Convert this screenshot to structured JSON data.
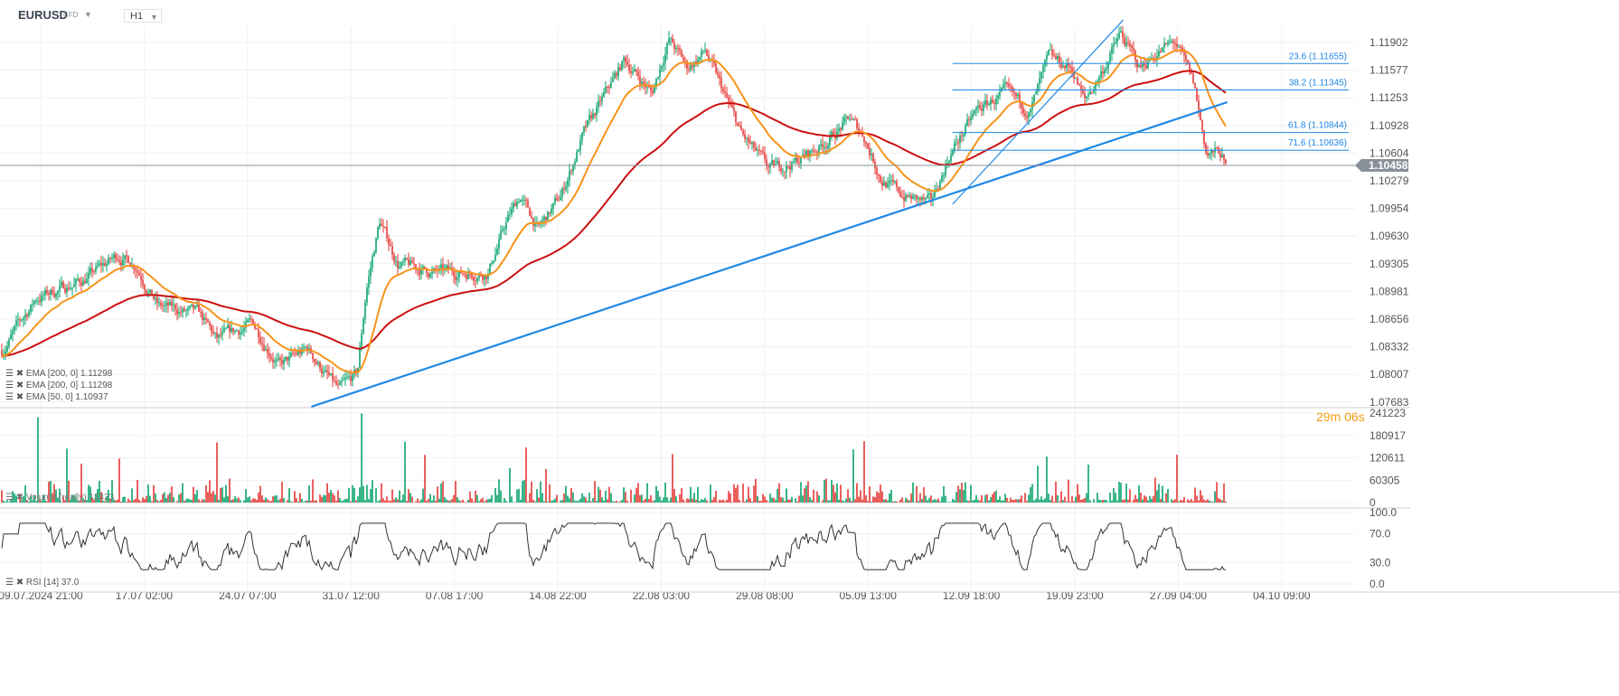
{
  "header": {
    "symbol": "EURUSD",
    "instrument_type": "CFD",
    "timeframe": "H1",
    "dropdown_icon": "caret-down-icon"
  },
  "colors": {
    "up": "#0aa36b",
    "down": "#e53935",
    "ema200": "#cc1010",
    "ema50": "#f7931a",
    "trendline": "#1e88e5",
    "fib": "#1e88e5",
    "price_line": "#8a9099",
    "rsi": "#333333"
  },
  "legend": {
    "ema1": "EMA [200, 0] 1.11298",
    "ema2": "EMA [200, 0] 1.11298",
    "ema3": "EMA [50, 0] 1.10937",
    "volume": "Volume (really) 13423",
    "rsi": "RSI [14] 37.0"
  },
  "timer": "29m 06s",
  "current_price": "1.10458",
  "chart_data": {
    "type": "candlestick",
    "price_ticks": [
      "1.11902",
      "1.11577",
      "1.11253",
      "1.10928",
      "1.10604",
      "1.10279",
      "1.09954",
      "1.09630",
      "1.09305",
      "1.08981",
      "1.08656",
      "1.08332",
      "1.08007",
      "1.07683"
    ],
    "volume_ticks": [
      "241223",
      "180917",
      "120611",
      "60305",
      "0"
    ],
    "rsi_ticks": [
      "100.0",
      "70.0",
      "30.0",
      "0.0"
    ],
    "x_ticks": [
      "09.07.2024  21:00",
      "17.07  02:00",
      "24.07  07:00",
      "31.07  12:00",
      "07.08  17:00",
      "14.08  22:00",
      "22.08  03:00",
      "29.08  08:00",
      "05.09  13:00",
      "12.09  18:00",
      "19.09  23:00",
      "27.09  04:00",
      "04.10  09:00"
    ],
    "price_path": [
      [
        "07.07 01:00",
        1.0825
      ],
      [
        "09.07 14:00",
        1.089
      ],
      [
        "12.07 17:00",
        1.091
      ],
      [
        "15.07 06:00",
        1.094
      ],
      [
        "16.07 12:00",
        1.093
      ],
      [
        "18.07 02:00",
        1.088
      ],
      [
        "20.07 22:00",
        1.087
      ],
      [
        "22.07 04:00",
        1.084
      ],
      [
        "24.07 16:00",
        1.086
      ],
      [
        "26.07 14:00",
        1.081
      ],
      [
        "28.07 12:00",
        1.083
      ],
      [
        "30.07 16:00",
        1.078
      ],
      [
        "31.07 23:00",
        1.08
      ],
      [
        "01.08 14:00",
        1.09
      ],
      [
        "02.08 12:00",
        1.098
      ],
      [
        "03.08 19:00",
        1.093
      ],
      [
        "06.08 07:00",
        1.092
      ],
      [
        "10.08 01:00",
        1.092
      ],
      [
        "11.08 09:00",
        1.098
      ],
      [
        "12.08 07:00",
        1.101
      ],
      [
        "13.08 14:00",
        1.097
      ],
      [
        "15.08 04:00",
        1.101
      ],
      [
        "16.08 16:00",
        1.108
      ],
      [
        "18.08 07:00",
        1.113
      ],
      [
        "19.08 14:00",
        1.117
      ],
      [
        "21.08 12:00",
        1.113
      ],
      [
        "22.08 16:00",
        1.1195
      ],
      [
        "23.08 23:00",
        1.116
      ],
      [
        "25.08 05:00",
        1.118
      ],
      [
        "26.08 12:00",
        1.113
      ],
      [
        "27.08 19:00",
        1.108
      ],
      [
        "29.08 16:00",
        1.104
      ],
      [
        "31.08 12:00",
        1.105
      ],
      [
        "02.09 09:00",
        1.107
      ],
      [
        "04.09 07:00",
        1.11
      ],
      [
        "05.09 07:00",
        1.108
      ],
      [
        "06.09 12:00",
        1.103
      ],
      [
        "08.09 01:00",
        1.101
      ],
      [
        "09.09 23:00",
        1.1
      ],
      [
        "11.09 07:00",
        1.106
      ],
      [
        "13.09 04:00",
        1.111
      ],
      [
        "15.09 02:00",
        1.113
      ],
      [
        "16.09 21:00",
        1.111
      ],
      [
        "18.09 04:00",
        1.117
      ],
      [
        "19.09 19:00",
        1.116
      ],
      [
        "20.09 16:00",
        1.112
      ],
      [
        "22.09 00:00",
        1.116
      ],
      [
        "23.09 04:00",
        1.12
      ],
      [
        "24.09 12:00",
        1.116
      ],
      [
        "25.09 19:00",
        1.118
      ],
      [
        "27.09 00:00",
        1.119
      ],
      [
        "28.09 07:00",
        1.114
      ],
      [
        "29.09 04:00",
        1.106
      ],
      [
        "30.09 04:00",
        1.106
      ],
      [
        "30.09 14:00",
        1.10458
      ]
    ],
    "trendlines": [
      {
        "from": [
          "28.07 18:00",
          1.07622
        ],
        "to": [
          "30.09 15:00",
          1.11201
        ]
      },
      {
        "from": [
          "11.09 11:00",
          1.10001
        ],
        "to": [
          "23.09 09:00",
          1.12168
        ]
      }
    ],
    "fibonacci": {
      "from": "11.09 11:00",
      "levels": [
        {
          "label": "23.6 (1.11655)",
          "price": 1.11655
        },
        {
          "label": "38.2 (1.11345)",
          "price": 1.11345
        },
        {
          "label": "61.8 (1.10844)",
          "price": 1.10844
        },
        {
          "label": "71.6 (1.10636)",
          "price": 1.10636
        }
      ]
    },
    "indicators": [
      "EMA 200",
      "EMA 50",
      "Volume",
      "RSI 14"
    ]
  }
}
